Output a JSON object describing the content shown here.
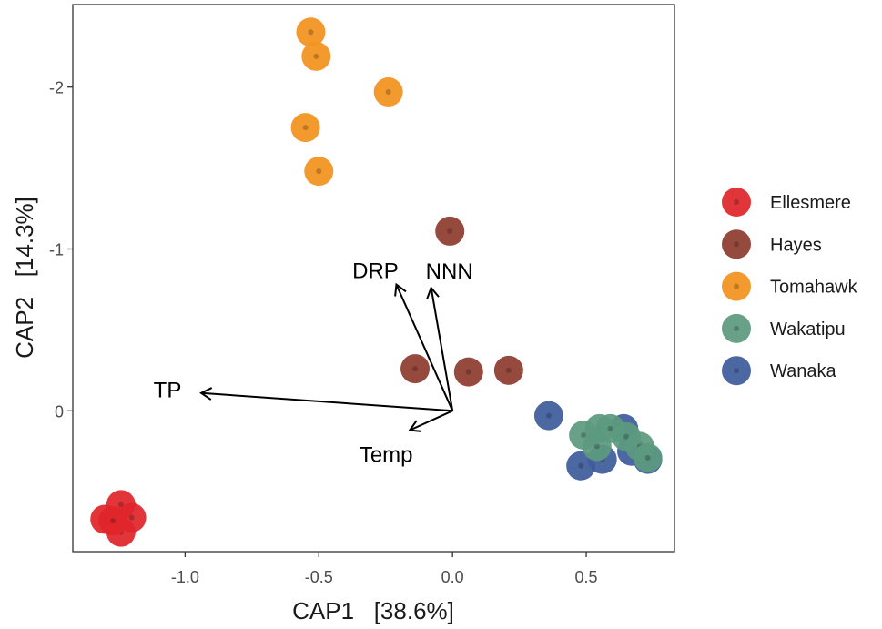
{
  "chart_data": {
    "type": "scatter",
    "title": "",
    "xlabel": "CAP1   [38.6%]",
    "ylabel": "CAP2   [14.3%]",
    "xlim": [
      -1.42,
      0.83
    ],
    "ylim": [
      -2.51,
      0.87
    ],
    "y_reversed": true,
    "x_ticks": [
      -1.0,
      -0.5,
      0.0,
      0.5
    ],
    "x_tick_labels": [
      "-1.0",
      "-0.5",
      "0.0",
      "0.5"
    ],
    "y_ticks": [
      -2,
      -1,
      0
    ],
    "y_tick_labels": [
      "-2",
      "-1",
      "0"
    ],
    "grid": false,
    "legend_position": "right",
    "series": [
      {
        "name": "Ellesmere",
        "color": "#E0262B",
        "points": [
          [
            -1.3,
            0.67
          ],
          [
            -1.24,
            0.58
          ],
          [
            -1.24,
            0.75
          ],
          [
            -1.2,
            0.66
          ],
          [
            -1.27,
            0.68
          ]
        ]
      },
      {
        "name": "Hayes",
        "color": "#8E3B2E",
        "points": [
          [
            -0.01,
            -1.11
          ],
          [
            -0.14,
            -0.26
          ],
          [
            0.06,
            -0.24
          ],
          [
            0.21,
            -0.25
          ]
        ]
      },
      {
        "name": "Tomahawk",
        "color": "#F2921F",
        "points": [
          [
            -0.53,
            -2.34
          ],
          [
            -0.51,
            -2.19
          ],
          [
            -0.24,
            -1.97
          ],
          [
            -0.55,
            -1.75
          ],
          [
            -0.5,
            -1.48
          ]
        ]
      },
      {
        "name": "Wakatipu",
        "color": "#5C9A7F",
        "points": [
          [
            0.49,
            0.15
          ],
          [
            0.55,
            0.11
          ],
          [
            0.59,
            0.11
          ],
          [
            0.65,
            0.16
          ],
          [
            0.7,
            0.22
          ],
          [
            0.73,
            0.29
          ],
          [
            0.54,
            0.22
          ]
        ]
      },
      {
        "name": "Wanaka",
        "color": "#3E5C9C",
        "points": [
          [
            0.36,
            0.03
          ],
          [
            0.48,
            0.34
          ],
          [
            0.56,
            0.3
          ],
          [
            0.64,
            0.11
          ],
          [
            0.67,
            0.25
          ],
          [
            0.73,
            0.3
          ]
        ]
      }
    ],
    "vectors": [
      {
        "name": "TP",
        "x": -0.94,
        "y": -0.11
      },
      {
        "name": "DRP",
        "x": -0.21,
        "y": -0.78
      },
      {
        "name": "NNN",
        "x": -0.08,
        "y": -0.76
      },
      {
        "name": "Temp",
        "x": -0.16,
        "y": 0.12
      }
    ]
  }
}
